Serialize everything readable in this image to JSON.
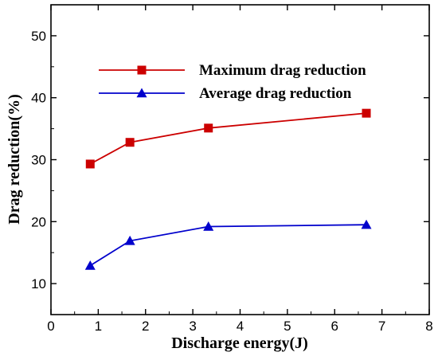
{
  "chart_data": {
    "type": "line",
    "title": "",
    "xlabel": "Discharge energy(J)",
    "ylabel": "Drag reduction(%)",
    "xlim": [
      0,
      8
    ],
    "ylim": [
      5,
      55
    ],
    "xticks": [
      0,
      1,
      2,
      3,
      4,
      5,
      6,
      7,
      8
    ],
    "yticks": [
      10,
      20,
      30,
      40,
      50
    ],
    "grid": false,
    "legend_position": "top",
    "series": [
      {
        "name": "Maximum drag reduction",
        "color": "#cc0000",
        "marker": "square",
        "x": [
          0.83,
          1.67,
          3.33,
          6.67
        ],
        "y": [
          29.3,
          32.8,
          35.1,
          37.5
        ]
      },
      {
        "name": "Average drag reduction",
        "color": "#0000cc",
        "marker": "triangle",
        "x": [
          0.83,
          1.67,
          3.33,
          6.67
        ],
        "y": [
          12.9,
          16.9,
          19.2,
          19.5
        ]
      }
    ]
  }
}
